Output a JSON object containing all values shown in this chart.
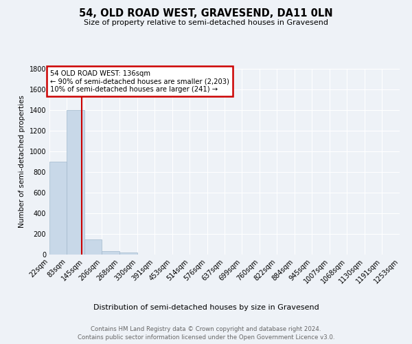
{
  "title": "54, OLD ROAD WEST, GRAVESEND, DA11 0LN",
  "subtitle": "Size of property relative to semi-detached houses in Gravesend",
  "xlabel": "Distribution of semi-detached houses by size in Gravesend",
  "ylabel": "Number of semi-detached properties",
  "bin_edges": [
    22,
    83,
    145,
    206,
    268,
    330,
    391,
    453,
    514,
    576,
    637,
    699,
    760,
    822,
    884,
    945,
    1007,
    1068,
    1130,
    1191,
    1253
  ],
  "bar_heights": [
    900,
    1400,
    145,
    35,
    20,
    0,
    0,
    0,
    0,
    0,
    0,
    0,
    0,
    0,
    0,
    0,
    0,
    0,
    0,
    0
  ],
  "bar_color": "#c8d8e8",
  "bar_edgecolor": "#a0b8cc",
  "property_size": 136,
  "property_label": "54 OLD ROAD WEST: 136sqm",
  "smaller_pct": "90%",
  "smaller_count": "2,203",
  "larger_pct": "10%",
  "larger_count": "241",
  "vline_color": "#cc0000",
  "annotation_box_color": "#cc0000",
  "background_color": "#eef2f7",
  "grid_color": "#ffffff",
  "ylim": [
    0,
    1800
  ],
  "yticks": [
    0,
    200,
    400,
    600,
    800,
    1000,
    1200,
    1400,
    1600,
    1800
  ],
  "footer_line1": "Contains HM Land Registry data © Crown copyright and database right 2024.",
  "footer_line2": "Contains public sector information licensed under the Open Government Licence v3.0."
}
